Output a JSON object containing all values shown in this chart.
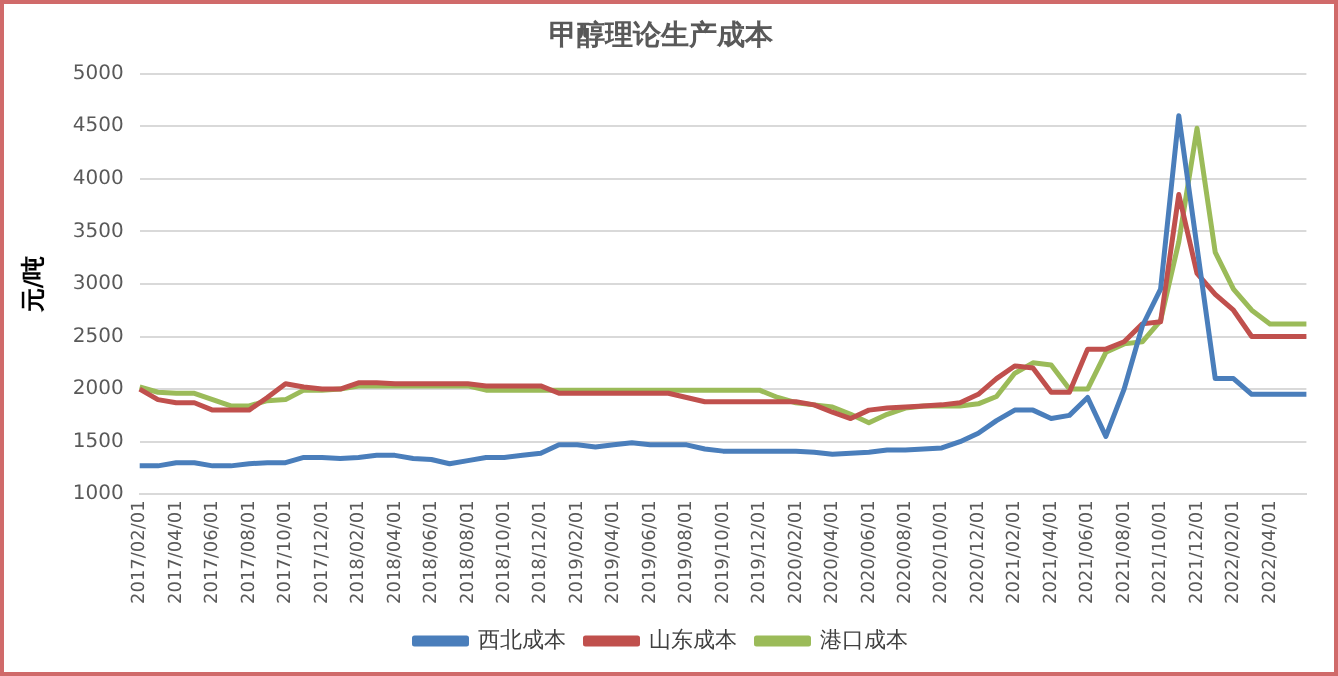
{
  "chart_data": {
    "type": "line",
    "title": "甲醇理论生产成本",
    "ylabel": "元/吨",
    "categories": [
      "2017/02/01",
      null,
      "2017/04/01",
      null,
      "2017/06/01",
      null,
      "2017/08/01",
      null,
      "2017/10/01",
      null,
      "2017/12/01",
      null,
      "2018/02/01",
      null,
      "2018/04/01",
      null,
      "2018/06/01",
      null,
      "2018/08/01",
      null,
      "2018/10/01",
      null,
      "2018/12/01",
      null,
      "2019/02/01",
      null,
      "2019/04/01",
      null,
      "2019/06/01",
      null,
      "2019/08/01",
      null,
      "2019/10/01",
      null,
      "2019/12/01",
      null,
      "2020/02/01",
      null,
      "2020/04/01",
      null,
      "2020/06/01",
      null,
      "2020/08/01",
      null,
      "2020/10/01",
      null,
      "2020/12/01",
      null,
      "2021/02/01",
      null,
      "2021/04/01",
      null,
      "2021/06/01",
      null,
      "2021/08/01",
      null,
      "2021/10/01",
      null,
      "2021/12/01",
      null,
      "2022/02/01",
      null,
      "2022/04/01",
      null,
      null
    ],
    "series": [
      {
        "name": "西北成本",
        "color": "#4a7ebb",
        "values": [
          1270,
          1270,
          1300,
          1300,
          1270,
          1270,
          1290,
          1300,
          1300,
          1350,
          1350,
          1340,
          1350,
          1370,
          1370,
          1340,
          1330,
          1290,
          1320,
          1350,
          1350,
          1370,
          1390,
          1470,
          1470,
          1450,
          1470,
          1490,
          1470,
          1470,
          1470,
          1430,
          1410,
          1410,
          1410,
          1410,
          1410,
          1400,
          1380,
          1390,
          1400,
          1420,
          1420,
          1430,
          1440,
          1500,
          1580,
          1700,
          1800,
          1800,
          1720,
          1750,
          1920,
          1550,
          2000,
          2600,
          2950,
          4600,
          3350,
          2100,
          2100,
          1950,
          1950,
          1950,
          1950
        ]
      },
      {
        "name": "山东成本",
        "color": "#c0504d",
        "values": [
          2000,
          1900,
          1870,
          1870,
          1800,
          1800,
          1800,
          1920,
          2050,
          2020,
          2000,
          2000,
          2060,
          2060,
          2050,
          2050,
          2050,
          2050,
          2050,
          2030,
          2030,
          2030,
          2030,
          1960,
          1960,
          1960,
          1960,
          1960,
          1960,
          1960,
          1920,
          1880,
          1880,
          1880,
          1880,
          1880,
          1880,
          1850,
          1780,
          1720,
          1800,
          1820,
          1830,
          1840,
          1850,
          1870,
          1950,
          2100,
          2220,
          2200,
          1970,
          1970,
          2380,
          2380,
          2450,
          2620,
          2640,
          3850,
          3100,
          2900,
          2750,
          2500,
          2500,
          2500,
          2500
        ]
      },
      {
        "name": "港口成本",
        "color": "#9bbb59",
        "values": [
          2020,
          1970,
          1960,
          1960,
          1900,
          1840,
          1840,
          1890,
          1900,
          1990,
          1990,
          2000,
          2030,
          2030,
          2030,
          2030,
          2030,
          2030,
          2030,
          1990,
          1990,
          1990,
          1990,
          1990,
          1990,
          1990,
          1990,
          1990,
          1990,
          1990,
          1990,
          1990,
          1990,
          1990,
          1990,
          1920,
          1870,
          1850,
          1830,
          1760,
          1680,
          1760,
          1820,
          1840,
          1840,
          1840,
          1860,
          1930,
          2150,
          2250,
          2230,
          2000,
          2000,
          2350,
          2430,
          2450,
          2650,
          3400,
          4480,
          3300,
          2950,
          2750,
          2620,
          2620,
          2620
        ]
      }
    ],
    "ylim": [
      1000,
      5000
    ],
    "yticks": [
      1000,
      1500,
      2000,
      2500,
      3000,
      3500,
      4000,
      4500,
      5000
    ],
    "grid": "y",
    "legend": "bottom",
    "marker": "none",
    "line_style": "solid"
  }
}
